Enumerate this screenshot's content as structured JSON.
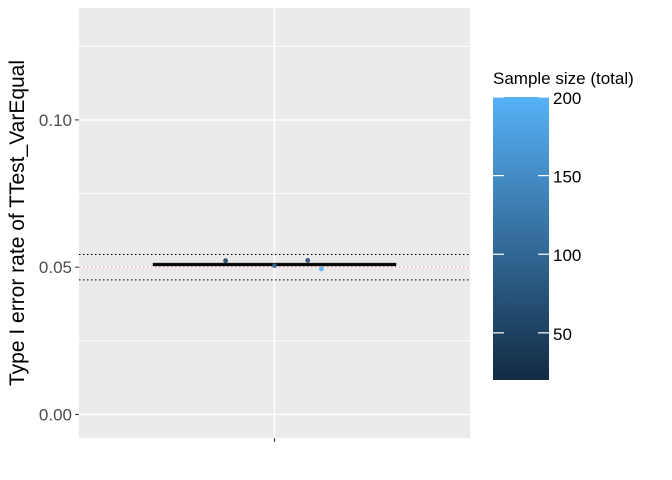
{
  "chart_data": {
    "type": "boxplot",
    "ylabel": "Type I error rate of TTest_VarEqual",
    "ylim": [
      -0.008,
      0.138
    ],
    "yticks": [
      0.0,
      0.05,
      0.1
    ],
    "ytick_labels": [
      "0.00",
      "0.05",
      "0.10"
    ],
    "x_categories": [
      ""
    ],
    "grid": true,
    "reference_lines": {
      "nominal": 0.05,
      "lower_bound": 0.0457,
      "upper_bound": 0.0543
    },
    "box": {
      "q1": 0.0505,
      "median": 0.0509,
      "q3": 0.0513
    },
    "points": [
      {
        "x_offset": -0.25,
        "y": 0.0522,
        "sample_size": 50
      },
      {
        "x_offset": 0.0,
        "y": 0.0505,
        "sample_size": 100
      },
      {
        "x_offset": 0.17,
        "y": 0.0523,
        "sample_size": 60
      },
      {
        "x_offset": 0.24,
        "y": 0.0494,
        "sample_size": 200
      }
    ],
    "legend": {
      "title": "Sample size (total)",
      "type": "colorbar",
      "placement": "right",
      "range": [
        20,
        200
      ],
      "ticks": [
        50,
        100,
        150,
        200
      ],
      "tick_labels": [
        "50",
        "100",
        "150",
        "200"
      ],
      "color_low": "#132B43",
      "color_high": "#56B1F7"
    },
    "colors": {
      "panel_bg": "#EBEBEB",
      "grid": "#FFFFFF",
      "nominal_line": "#F8766D",
      "bound_lines": "#000000"
    }
  }
}
